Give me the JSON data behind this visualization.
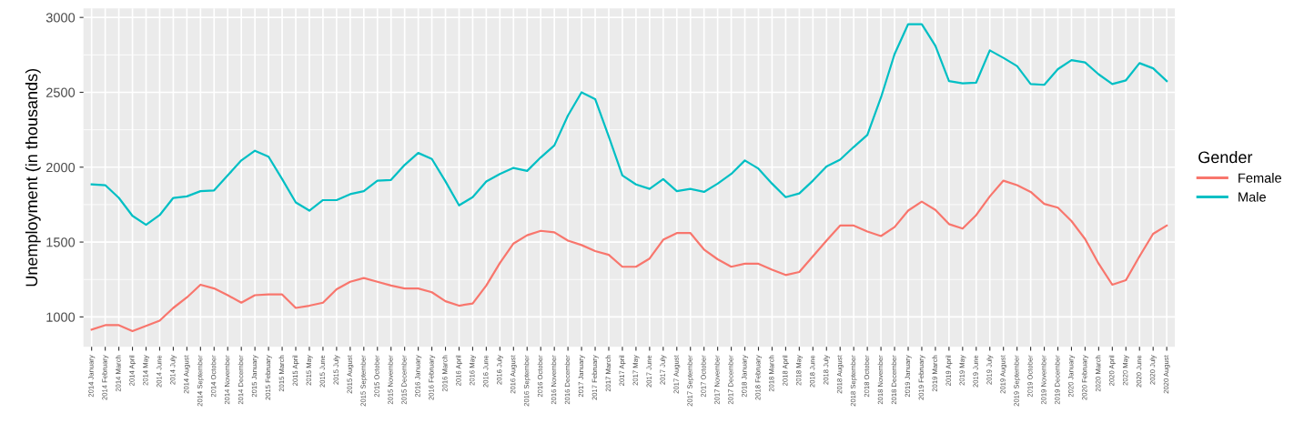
{
  "chart_data": {
    "type": "line",
    "ylabel": "Unemployment (in thousands)",
    "legend_title": "Gender",
    "legend": "right",
    "grid": true,
    "categories": [
      "2014 January",
      "2014 February",
      "2014 March",
      "2014 April",
      "2014 May",
      "2014 June",
      "2014 July",
      "2014 August",
      "2014 September",
      "2014 October",
      "2014 November",
      "2014 December",
      "2015 January",
      "2015 February",
      "2015 March",
      "2015 April",
      "2015 May",
      "2015 June",
      "2015 July",
      "2015 August",
      "2015 September",
      "2015 October",
      "2015 November",
      "2015 December",
      "2016 January",
      "2016 February",
      "2016 March",
      "2016 April",
      "2016 May",
      "2016 June",
      "2016 July",
      "2016 August",
      "2016 September",
      "2016 October",
      "2016 November",
      "2016 December",
      "2017 January",
      "2017 February",
      "2017 March",
      "2017 April",
      "2017 May",
      "2017 June",
      "2017 July",
      "2017 August",
      "2017 September",
      "2017 October",
      "2017 November",
      "2017 December",
      "2018 January",
      "2018 February",
      "2018 March",
      "2018 April",
      "2018 May",
      "2018 June",
      "2018 July",
      "2018 August",
      "2018 September",
      "2018 October",
      "2018 November",
      "2018 December",
      "2019 January",
      "2019 February",
      "2019 March",
      "2019 April",
      "2019 May",
      "2019 June",
      "2019 July",
      "2019 August",
      "2019 September",
      "2019 October",
      "2019 November",
      "2019 December",
      "2020 January",
      "2020 February",
      "2020 March",
      "2020 April",
      "2020 May",
      "2020 June",
      "2020 July",
      "2020 August"
    ],
    "ylim": [
      800,
      3060
    ],
    "yticks": [
      1000,
      1500,
      2000,
      2500,
      3000
    ],
    "series": [
      {
        "name": "Female",
        "color": "#f8766d",
        "values": [
          915,
          945,
          945,
          905,
          940,
          975,
          1060,
          1130,
          1215,
          1190,
          1145,
          1095,
          1145,
          1150,
          1150,
          1060,
          1075,
          1095,
          1185,
          1235,
          1260,
          1235,
          1210,
          1190,
          1190,
          1165,
          1105,
          1075,
          1090,
          1210,
          1360,
          1490,
          1545,
          1575,
          1565,
          1510,
          1480,
          1440,
          1415,
          1335,
          1335,
          1390,
          1515,
          1560,
          1560,
          1450,
          1385,
          1335,
          1355,
          1355,
          1315,
          1280,
          1300,
          1405,
          1510,
          1610,
          1610,
          1570,
          1540,
          1600,
          1710,
          1770,
          1715,
          1620,
          1590,
          1680,
          1805,
          1910,
          1880,
          1835,
          1755,
          1730,
          1640,
          1520,
          1355,
          1215,
          1245,
          1405,
          1555,
          1610
        ]
      },
      {
        "name": "Male",
        "color": "#00bfc4",
        "values": [
          1885,
          1880,
          1795,
          1675,
          1615,
          1680,
          1795,
          1805,
          1840,
          1845,
          1945,
          2045,
          2110,
          2070,
          1920,
          1765,
          1710,
          1780,
          1780,
          1820,
          1840,
          1910,
          1915,
          2015,
          2095,
          2055,
          1905,
          1745,
          1800,
          1905,
          1955,
          1995,
          1975,
          2065,
          2145,
          2345,
          2500,
          2455,
          2205,
          1945,
          1885,
          1855,
          1920,
          1840,
          1855,
          1835,
          1890,
          1955,
          2045,
          1990,
          1890,
          1800,
          1825,
          1910,
          2005,
          2050,
          2135,
          2215,
          2465,
          2755,
          2955,
          2955,
          2810,
          2575,
          2560,
          2565,
          2780,
          2730,
          2675,
          2555,
          2550,
          2655,
          2715,
          2700,
          2620,
          2555,
          2580,
          2695,
          2660,
          2575
        ]
      }
    ]
  }
}
